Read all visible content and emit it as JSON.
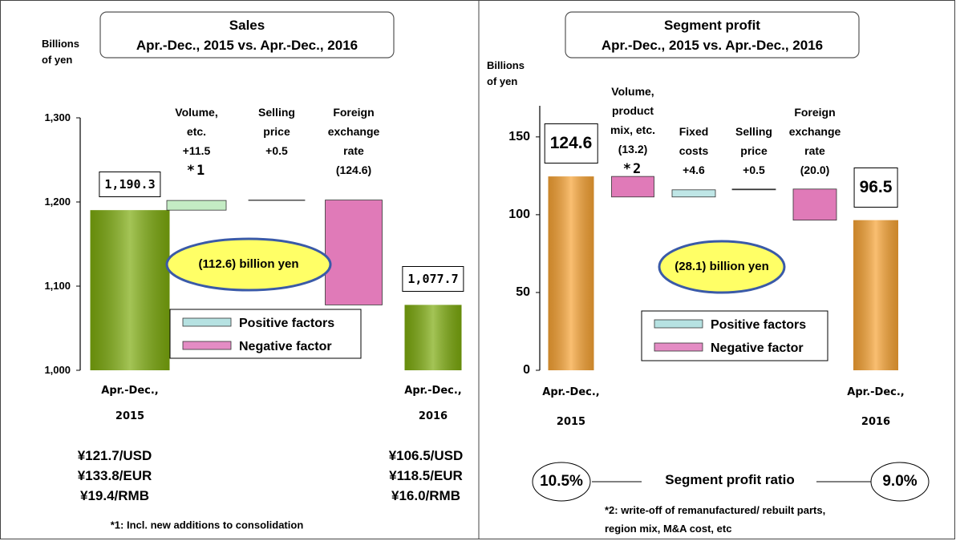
{
  "chart_data": [
    {
      "type": "waterfall",
      "title": "Sales",
      "subtitle": "Apr.-Dec., 2015 vs. Apr.-Dec., 2016",
      "y_label": "Billions\nof yen",
      "categories": [
        "Apr.-Dec.,\n2015",
        "Volume,\netc.",
        "Selling\nprice",
        "Foreign\nexchange\nrate",
        "Apr.-Dec.,\n2016"
      ],
      "values": [
        1190.3,
        11.5,
        0.5,
        -124.6,
        1077.7
      ],
      "value_labels": [
        "1,190.3",
        "+11.5",
        "+0.5",
        "(124.6)",
        "1,077.7"
      ],
      "notes": [
        null,
        "*1",
        null,
        null,
        null
      ],
      "colors": [
        "#7dab0e",
        "#c4ecc4",
        "#222222",
        "#e07ab8",
        "#7dab0e"
      ],
      "ylim": [
        1000,
        1300
      ],
      "yticks": [
        {
          "value": 1000,
          "label": "1,000"
        },
        {
          "value": 1100,
          "label": "1,100"
        },
        {
          "value": 1200,
          "label": "1,200"
        },
        {
          "value": 1300,
          "label": "1,300"
        }
      ],
      "annotation": "(112.6) billion yen",
      "legend": [
        {
          "name": "Positive factors",
          "color": "#b6e2e2"
        },
        {
          "name": "Negative factor",
          "color": "#e48cc4"
        }
      ],
      "exchange_rates": [
        [
          "¥121.7/USD",
          "¥133.8/EUR",
          "¥19.4/RMB"
        ],
        [
          "¥106.5/USD",
          "¥118.5/EUR",
          "¥16.0/RMB"
        ]
      ],
      "footnote": "*1: Incl. new additions to consolidation"
    },
    {
      "type": "waterfall",
      "title": "Segment profit",
      "subtitle": "Apr.-Dec., 2015 vs. Apr.-Dec., 2016",
      "y_label": "Billions\nof yen",
      "categories": [
        "Apr.-Dec.,\n2015",
        "Volume,\nproduct\nmix, etc.",
        "Fixed\ncosts",
        "Selling\nprice",
        "Foreign\nexchange\nrate",
        "Apr.-Dec.,\n2016"
      ],
      "values": [
        124.6,
        -13.2,
        4.6,
        0.5,
        -20.0,
        96.5
      ],
      "value_labels": [
        "124.6",
        "(13.2)",
        "+4.6",
        "+0.5",
        "(20.0)",
        "96.5"
      ],
      "notes": [
        null,
        "*2",
        null,
        null,
        null,
        null
      ],
      "colors": [
        "#f7a334",
        "#e07ab8",
        "#bfe6e6",
        "#222222",
        "#e07ab8",
        "#f7a334"
      ],
      "ylim": [
        0,
        170
      ],
      "yticks": [
        0,
        50,
        100,
        150
      ],
      "annotation": "(28.1) billion yen",
      "legend": [
        {
          "name": "Positive factors",
          "color": "#b6e2e2"
        },
        {
          "name": "Negative factor",
          "color": "#e48cc4"
        }
      ],
      "ratio": {
        "label": "Segment profit ratio",
        "values": [
          "10.5%",
          "9.0%"
        ]
      },
      "footnote": "*2: write-off of remanufactured/ rebuilt parts,\nregion mix, M&A cost, etc"
    }
  ]
}
